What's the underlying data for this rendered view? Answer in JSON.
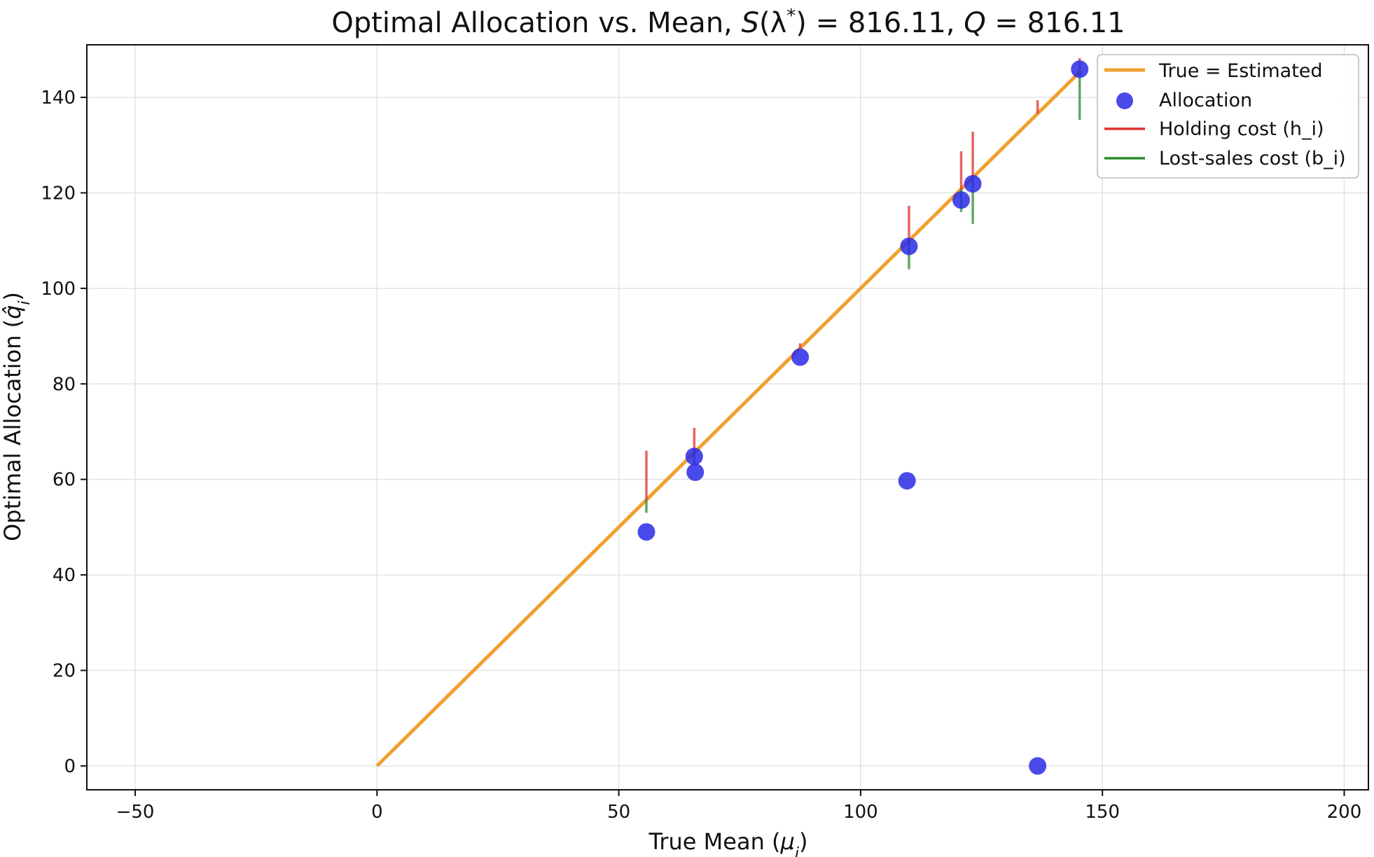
{
  "chart_data": {
    "type": "scatter",
    "title_parts": {
      "prefix": "Optimal Allocation vs. Mean, ",
      "s_symbol": "S",
      "lambda_symbol": "(λ",
      "star": "*",
      "s_equals": ") = ",
      "s_value": "816.11",
      "sep": ", ",
      "q_symbol": "Q",
      "q_equals": " = ",
      "q_value": "816.11"
    },
    "xlabel_parts": {
      "text": "True Mean (",
      "symbol": "μ",
      "sub": "i",
      "close": ")"
    },
    "ylabel_parts": {
      "text": "Optimal Allocation (",
      "symbol": "q̂",
      "sub": "i",
      "close": ")"
    },
    "xlim": [
      -60,
      205
    ],
    "ylim": [
      -5,
      151
    ],
    "xticks": [
      -50,
      0,
      50,
      100,
      150,
      200
    ],
    "yticks": [
      0,
      20,
      40,
      60,
      80,
      100,
      120,
      140
    ],
    "grid": true,
    "legend_position": "top-right",
    "reference_line": {
      "name": "True = Estimated",
      "x": [
        0,
        145.5
      ],
      "y": [
        0,
        145.5
      ],
      "color": "#f0a030"
    },
    "allocation": {
      "name": "Allocation",
      "color": "#2a2ae6",
      "points": [
        {
          "x": 55.7,
          "y": 49.0
        },
        {
          "x": 65.6,
          "y": 64.8
        },
        {
          "x": 65.8,
          "y": 61.5
        },
        {
          "x": 87.5,
          "y": 85.6
        },
        {
          "x": 109.6,
          "y": 59.7
        },
        {
          "x": 110.0,
          "y": 108.8
        },
        {
          "x": 120.8,
          "y": 118.5
        },
        {
          "x": 123.2,
          "y": 121.9
        },
        {
          "x": 136.6,
          "y": 0.0
        },
        {
          "x": 145.3,
          "y": 145.9
        }
      ]
    },
    "holding_cost": {
      "name": "Holding cost (h_i)",
      "color": "#e03030",
      "segments": [
        {
          "x": 55.7,
          "y0": 55.7,
          "y1": 66.0
        },
        {
          "x": 65.6,
          "y0": 65.6,
          "y1": 70.8
        },
        {
          "x": 87.5,
          "y0": 87.5,
          "y1": 88.5
        },
        {
          "x": 110.0,
          "y0": 110.0,
          "y1": 117.3
        },
        {
          "x": 120.8,
          "y0": 120.8,
          "y1": 128.7
        },
        {
          "x": 123.2,
          "y0": 123.2,
          "y1": 132.8
        },
        {
          "x": 136.6,
          "y0": 136.6,
          "y1": 139.4
        },
        {
          "x": 145.3,
          "y0": 145.3,
          "y1": 148.2
        }
      ]
    },
    "lost_sales_cost": {
      "name": "Lost-sales cost (b_i)",
      "color": "#2e8b2e",
      "segments": [
        {
          "x": 55.7,
          "y0": 55.7,
          "y1": 53.0
        },
        {
          "x": 65.6,
          "y0": 65.6,
          "y1": 63.3
        },
        {
          "x": 110.0,
          "y0": 110.0,
          "y1": 104.0
        },
        {
          "x": 120.8,
          "y0": 120.8,
          "y1": 116.0
        },
        {
          "x": 123.2,
          "y0": 123.2,
          "y1": 113.5
        },
        {
          "x": 145.3,
          "y0": 145.3,
          "y1": 135.3
        }
      ]
    }
  }
}
